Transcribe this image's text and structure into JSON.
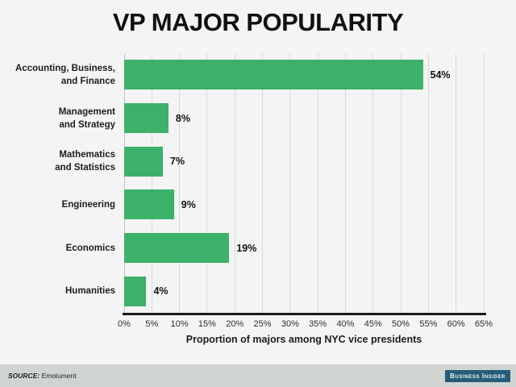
{
  "title": "VP MAJOR POPULARITY",
  "chart_data": {
    "type": "bar",
    "orientation": "horizontal",
    "title": "VP MAJOR POPULARITY",
    "categories": [
      "Accounting, Business,\nand Finance",
      "Management\nand Strategy",
      "Mathematics\nand Statistics",
      "Engineering",
      "Economics",
      "Humanities"
    ],
    "values": [
      54,
      8,
      7,
      9,
      19,
      4
    ],
    "value_labels": [
      "54%",
      "8%",
      "7%",
      "9%",
      "19%",
      "4%"
    ],
    "xlabel": "Proportion of majors among NYC vice presidents",
    "ylabel": "",
    "x_ticks": [
      "0%",
      "5%",
      "10%",
      "15%",
      "20%",
      "25%",
      "30%",
      "35%",
      "40%",
      "45%",
      "50%",
      "55%",
      "60%",
      "65%"
    ],
    "xlim": [
      0,
      65
    ],
    "grid": true,
    "legend": false,
    "bar_color": "#3cb169"
  },
  "footer": {
    "source_label": "SOURCE:",
    "source_value": "Emolument",
    "brand": "Business Insider"
  },
  "colors": {
    "background": "#f4f4f5",
    "bar": "#3cb169",
    "gridline": "#d7d9da",
    "axis": "#1a1a1a",
    "footer_background": "#cfd4d2",
    "brand_badge": "#265d79",
    "text": "#1d1d1d"
  }
}
